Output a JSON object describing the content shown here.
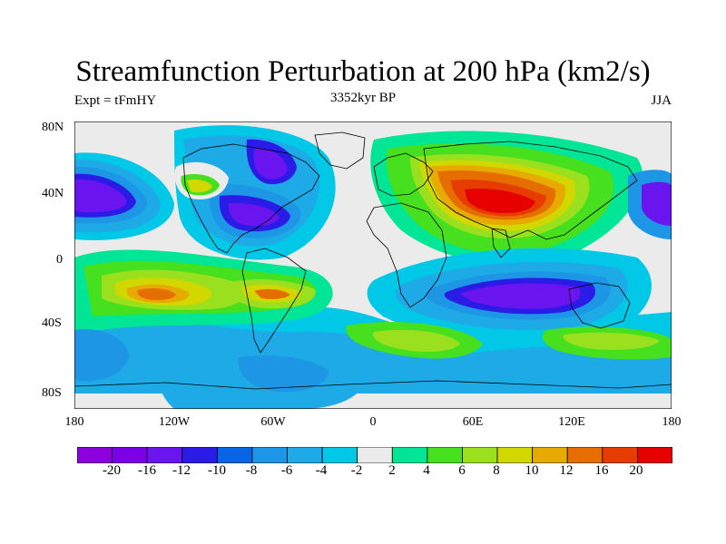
{
  "title": "Streamfunction Perturbation at 200 hPa (km2/s)",
  "left_label": "Expt = tFmHY",
  "center_label": "3352kyr BP",
  "right_label": "JJA",
  "map": {
    "projection": "cylindrical-equidistant",
    "lon_range": [
      -180,
      180
    ],
    "lat_range": [
      -90,
      90
    ],
    "y_ticks": [
      "80N",
      "40N",
      "0",
      "40S",
      "80S"
    ],
    "x_ticks": [
      "180",
      "120W",
      "60W",
      "0",
      "60E",
      "120E",
      "180"
    ],
    "missing_fill_color": "#eeeeee"
  },
  "colorbar": {
    "colors": [
      "#8b00dc",
      "#7b00e8",
      "#6a14f0",
      "#2a1ce6",
      "#0a64e6",
      "#1e96e6",
      "#1eaae6",
      "#00c8e6",
      "#ebebeb",
      "#00e696",
      "#46e01e",
      "#9be01e",
      "#d2d700",
      "#e6aa00",
      "#e66e00",
      "#e63c00",
      "#e60000"
    ],
    "labels": [
      "-20",
      "-16",
      "-12",
      "-10",
      "-8",
      "-6",
      "-4",
      "-2",
      "2",
      "4",
      "6",
      "8",
      "10",
      "12",
      "16",
      "20"
    ]
  }
}
